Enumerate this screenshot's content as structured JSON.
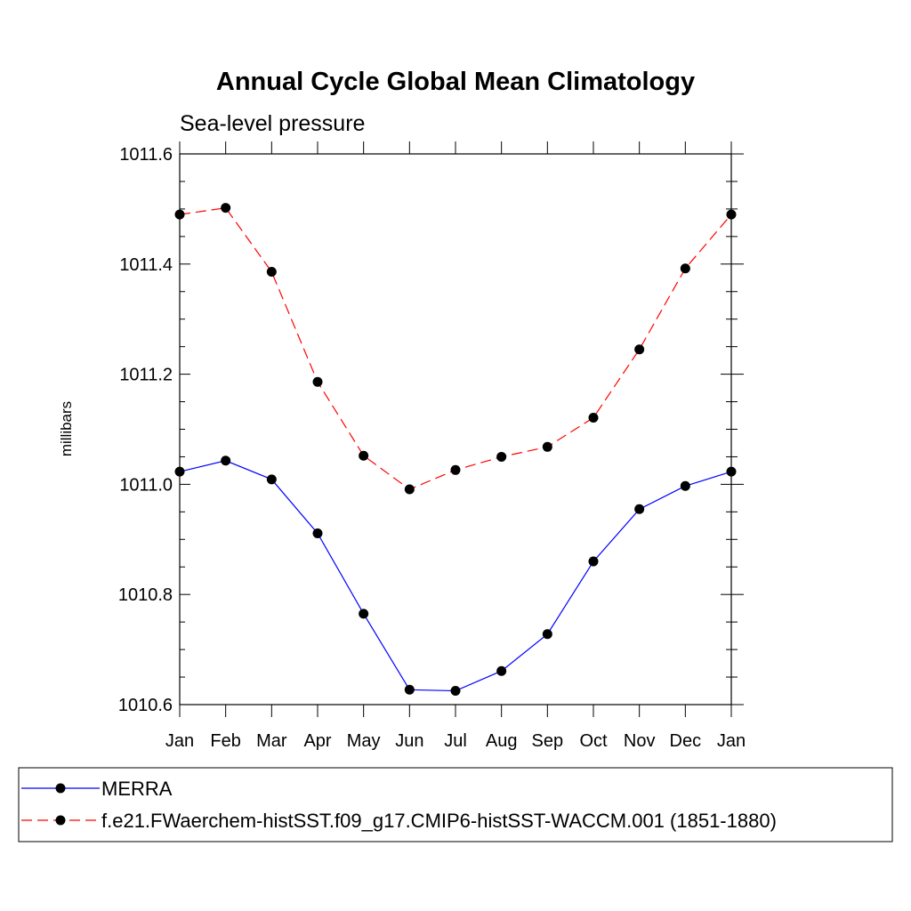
{
  "chart_data": {
    "type": "line",
    "title": "Annual Cycle Global Mean Climatology",
    "subtitle": "Sea-level pressure",
    "ylabel": "millibars",
    "xlabel": "",
    "categories": [
      "Jan",
      "Feb",
      "Mar",
      "Apr",
      "May",
      "Jun",
      "Jul",
      "Aug",
      "Sep",
      "Oct",
      "Nov",
      "Dec",
      "Jan"
    ],
    "ylim": [
      1010.6,
      1011.6
    ],
    "yticks": [
      "1010.6",
      "1010.8",
      "1011.0",
      "1011.2",
      "1011.4",
      "1011.6"
    ],
    "grid": false,
    "legend_position": "bottom",
    "series": [
      {
        "name": "MERRA",
        "color": "#0000ff",
        "line_style": "solid",
        "marker": "filled-circle",
        "values": [
          1011.023,
          1011.043,
          1011.009,
          1010.911,
          1010.765,
          1010.627,
          1010.625,
          1010.661,
          1010.728,
          1010.86,
          1010.955,
          1010.997,
          1011.023
        ]
      },
      {
        "name": "f.e21.FWaerchem-histSST.f09_g17.CMIP6-histSST-WACCM.001 (1851-1880)",
        "color": "#ff0000",
        "line_style": "dashed",
        "marker": "filled-circle",
        "values": [
          1011.49,
          1011.502,
          1011.386,
          1011.186,
          1011.052,
          1010.991,
          1011.026,
          1011.05,
          1011.068,
          1011.121,
          1011.245,
          1011.392,
          1011.49
        ]
      }
    ]
  }
}
